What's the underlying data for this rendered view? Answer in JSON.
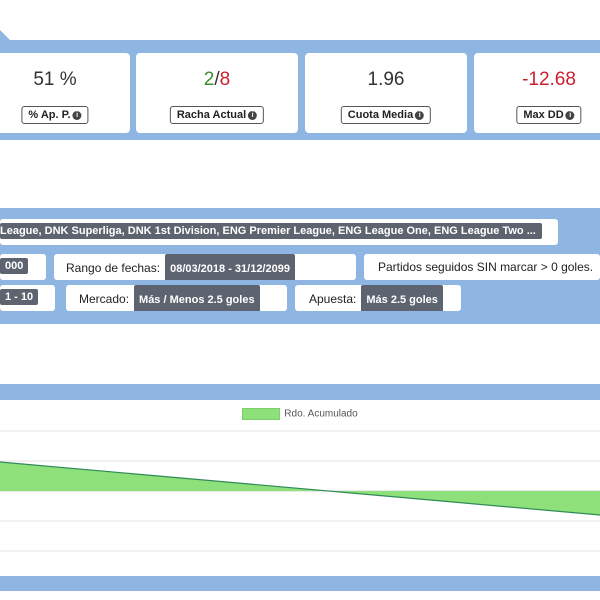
{
  "stats": [
    {
      "value": "51 %",
      "label": "% Ap. P."
    },
    {
      "value_good": "2",
      "value_sep": "/",
      "value_bad": "8",
      "label": "Racha Actual"
    },
    {
      "value": "1.96",
      "label": "Cuota Media"
    },
    {
      "value": "-12.68",
      "label": "Max DD"
    }
  ],
  "info_glyph": "i",
  "filters": {
    "leagues": "League, DNK Superliga, DNK 1st Division, ENG Premier League, ENG League One, ENG League Two ...",
    "partial_value_1": "000",
    "date_range_label": "Rango de fechas:",
    "date_range_value": "08/03/2018 - 31/12/2099",
    "scoreless_label": "Partidos seguidos SIN marcar > 0 goles.",
    "partial_value_2": "1 - 10",
    "market_label": "Mercado:",
    "market_value": "Más / Menos 2.5 goles",
    "bet_label": "Apuesta:",
    "bet_value": "Más 2.5 goles"
  },
  "chart_data": {
    "type": "area",
    "series": [
      {
        "name": "Rdo. Acumulado"
      }
    ],
    "colors": {
      "fill": "#8ee07a",
      "line": "#2e8b57",
      "band": "#8fb5e3"
    }
  }
}
